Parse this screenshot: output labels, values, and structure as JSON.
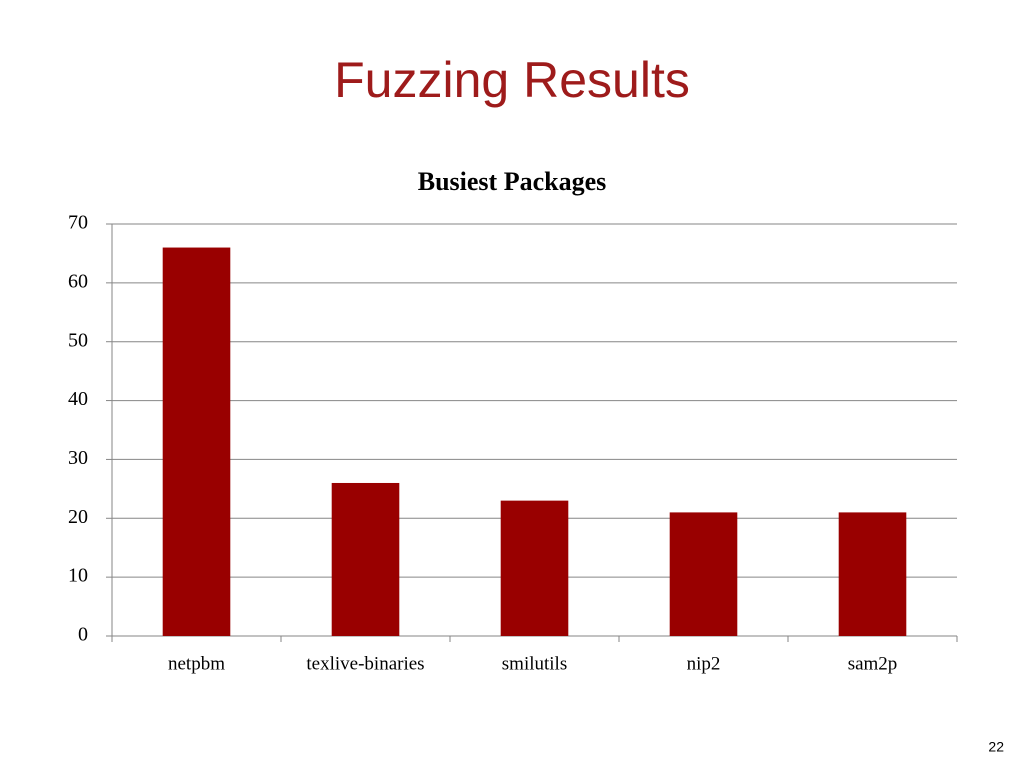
{
  "slide_title": "Fuzzing Results",
  "page_number": 22,
  "chart_data": {
    "type": "bar",
    "title": "Busiest Packages",
    "categories": [
      "netpbm",
      "texlive-binaries",
      "smilutils",
      "nip2",
      "sam2p"
    ],
    "values": [
      66,
      26,
      23,
      21,
      21
    ],
    "color": "#990000",
    "ylim": [
      0,
      70
    ],
    "yticks": [
      0,
      10,
      20,
      30,
      40,
      50,
      60,
      70
    ],
    "grid": true
  }
}
